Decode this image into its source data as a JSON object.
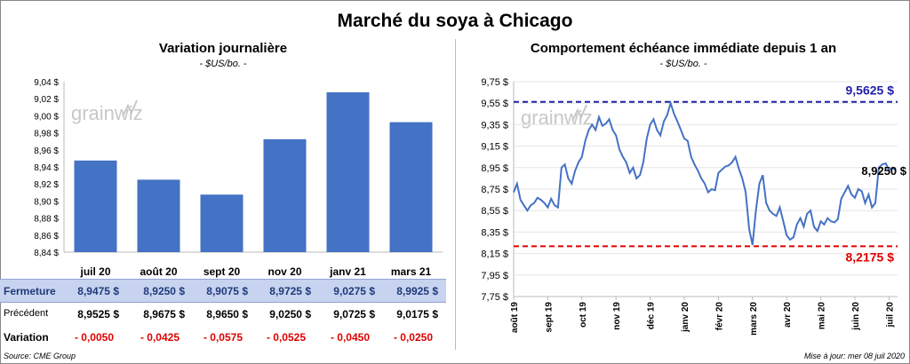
{
  "title": "Marché du soya à Chicago",
  "left_panel": {
    "title": "Variation  journalière",
    "subtitle": "- $US/bo. -",
    "watermark": "grainwiz"
  },
  "right_panel": {
    "title": "Comportement  échéance immédiate depuis 1 an",
    "subtitle": "- $US/bo. -",
    "watermark": "grainwiz"
  },
  "table": {
    "row_labels": {
      "close": "Fermeture",
      "prev": "Précédent",
      "var": "Variation"
    },
    "close": [
      "8,9475  $",
      "8,9250  $",
      "8,9075  $",
      "8,9725  $",
      "9,0275  $",
      "8,9925  $"
    ],
    "prev": [
      "8,9525  $",
      "8,9675  $",
      "8,9650  $",
      "9,0250  $",
      "9,0725  $",
      "9,0175  $"
    ],
    "var": [
      "- 0,0050",
      "- 0,0425",
      "- 0,0575",
      "- 0,0525",
      "- 0,0450",
      "- 0,0250"
    ]
  },
  "footer": {
    "source": "Source: CME Group",
    "updated": "Mise à jour: mer 08 juil 2020"
  },
  "colors": {
    "bar": "#4472c4",
    "line": "#4472c4",
    "high": "#1f1fa6",
    "low": "#e00000",
    "header_row": "#c7d3ef"
  },
  "chart_data": [
    {
      "type": "bar",
      "title": "Variation  journalière",
      "subtitle": "- $US/bo. -",
      "categories": [
        "juil 20",
        "août 20",
        "sept 20",
        "nov 20",
        "janv 21",
        "mars 21"
      ],
      "values": [
        8.9475,
        8.925,
        8.9075,
        8.9725,
        9.0275,
        8.9925
      ],
      "ylim": [
        8.84,
        9.04
      ],
      "yticks": [
        "8,84 $",
        "8,86 $",
        "8,88 $",
        "8,90 $",
        "8,92 $",
        "8,94 $",
        "8,96 $",
        "8,98 $",
        "9,00 $",
        "9,02 $",
        "9,04 $"
      ],
      "grid": false
    },
    {
      "type": "line",
      "title": "Comportement  échéance immédiate depuis 1 an",
      "subtitle": "- $US/bo. -",
      "ylim": [
        7.75,
        9.75
      ],
      "yticks": [
        "7,75 $",
        "7,95 $",
        "8,15 $",
        "8,35 $",
        "8,55 $",
        "8,75 $",
        "8,95 $",
        "9,15 $",
        "9,35 $",
        "9,55 $",
        "9,75 $"
      ],
      "xticks": [
        "août 19",
        "sept 19",
        "oct 19",
        "nov 19",
        "déc 19",
        "janv 20",
        "févr 20",
        "mars 20",
        "avr 20",
        "mai 20",
        "juin 20",
        "juil 20"
      ],
      "x_range": [
        0,
        11.25
      ],
      "annotations": [
        {
          "label": "9,5625  $",
          "value": 9.5625,
          "color": "#1f1fa6"
        },
        {
          "label": "8,2175  $",
          "value": 8.2175,
          "color": "#e00000"
        },
        {
          "label": "8,9250 $",
          "value": 8.925
        }
      ],
      "series": [
        {
          "x": [
            0,
            0.1,
            0.2,
            0.3,
            0.4,
            0.5,
            0.6,
            0.7,
            0.8,
            0.9,
            1.0,
            1.1,
            1.2,
            1.3,
            1.4,
            1.5,
            1.6,
            1.7,
            1.8,
            1.9,
            2.0,
            2.1,
            2.2,
            2.3,
            2.4,
            2.5,
            2.6,
            2.7,
            2.8,
            2.9,
            3.0,
            3.1,
            3.2,
            3.3,
            3.4,
            3.5,
            3.6,
            3.7,
            3.8,
            3.9,
            4.0,
            4.1,
            4.2,
            4.3,
            4.4,
            4.5,
            4.6,
            4.7,
            4.8,
            4.9,
            5.0,
            5.1,
            5.2,
            5.3,
            5.4,
            5.5,
            5.6,
            5.7,
            5.8,
            5.9,
            6.0,
            6.1,
            6.2,
            6.3,
            6.4,
            6.5,
            6.6,
            6.7,
            6.8,
            6.9,
            7.0,
            7.1,
            7.2,
            7.3,
            7.4,
            7.5,
            7.6,
            7.7,
            7.8,
            7.9,
            8.0,
            8.1,
            8.2,
            8.3,
            8.4,
            8.5,
            8.6,
            8.7,
            8.8,
            8.9,
            9.0,
            9.1,
            9.2,
            9.3,
            9.4,
            9.5,
            9.6,
            9.7,
            9.8,
            9.9,
            10.0,
            10.1,
            10.2,
            10.3,
            10.4,
            10.5,
            10.6,
            10.7,
            10.8,
            10.9,
            11.0,
            11.1,
            11.2
          ],
          "values": [
            8.72,
            8.8,
            8.65,
            8.6,
            8.55,
            8.6,
            8.62,
            8.67,
            8.65,
            8.62,
            8.58,
            8.66,
            8.6,
            8.58,
            8.95,
            8.98,
            8.85,
            8.8,
            8.92,
            9.0,
            9.05,
            9.2,
            9.3,
            9.35,
            9.3,
            9.42,
            9.34,
            9.36,
            9.4,
            9.3,
            9.25,
            9.12,
            9.05,
            9.0,
            8.9,
            8.95,
            8.85,
            8.88,
            9.0,
            9.22,
            9.35,
            9.4,
            9.3,
            9.25,
            9.38,
            9.44,
            9.55,
            9.45,
            9.38,
            9.3,
            9.22,
            9.2,
            9.05,
            8.98,
            8.92,
            8.85,
            8.8,
            8.72,
            8.75,
            8.74,
            8.9,
            8.93,
            8.96,
            8.97,
            9.0,
            9.05,
            8.94,
            8.85,
            8.72,
            8.38,
            8.23,
            8.55,
            8.8,
            8.88,
            8.62,
            8.55,
            8.52,
            8.5,
            8.58,
            8.45,
            8.32,
            8.28,
            8.3,
            8.42,
            8.48,
            8.4,
            8.52,
            8.55,
            8.4,
            8.36,
            8.45,
            8.42,
            8.48,
            8.45,
            8.44,
            8.47,
            8.66,
            8.72,
            8.78,
            8.7,
            8.67,
            8.75,
            8.73,
            8.62,
            8.7,
            8.58,
            8.62,
            8.95,
            8.98,
            8.99,
            8.93,
            8.95,
            8.925
          ],
          "color": "#4472c4"
        }
      ]
    }
  ]
}
